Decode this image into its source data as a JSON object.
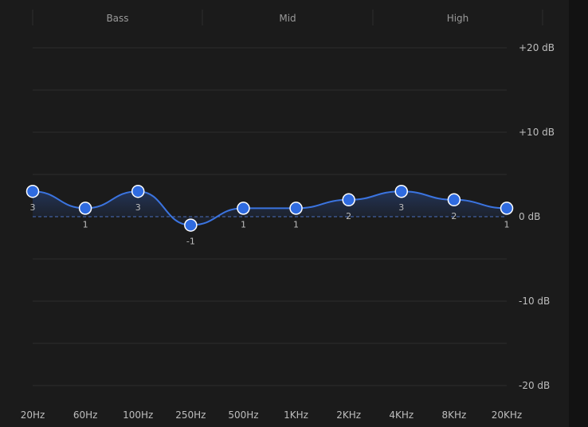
{
  "bands": [
    {
      "label": "Bass"
    },
    {
      "label": "Mid"
    },
    {
      "label": "High"
    }
  ],
  "colors": {
    "curve": "#3b74e0",
    "point_fill": "#2f6be0",
    "point_stroke": "#ffffff",
    "grid": "#2c2c2c",
    "zero_line": "#4a6fbf"
  },
  "chart_data": {
    "type": "line",
    "title": "",
    "xlabel": "",
    "ylabel": "",
    "categories": [
      "20Hz",
      "60Hz",
      "100Hz",
      "250Hz",
      "500Hz",
      "1KHz",
      "2KHz",
      "4KHz",
      "8KHz",
      "20KHz"
    ],
    "values": [
      3,
      1,
      3,
      -1,
      1,
      1,
      2,
      3,
      2,
      1
    ],
    "value_labels": [
      "3",
      "1",
      "3",
      "-1",
      "1",
      "1",
      "2",
      "3",
      "2",
      "1"
    ],
    "ylim": [
      -20,
      20
    ],
    "yticks": [
      {
        "value": 20,
        "label": "+20 dB"
      },
      {
        "value": 10,
        "label": "+10 dB"
      },
      {
        "value": 0,
        "label": "0 dB"
      },
      {
        "value": -10,
        "label": "-10 dB"
      },
      {
        "value": -20,
        "label": "-20 dB"
      }
    ],
    "grid": true,
    "legend": "none"
  }
}
